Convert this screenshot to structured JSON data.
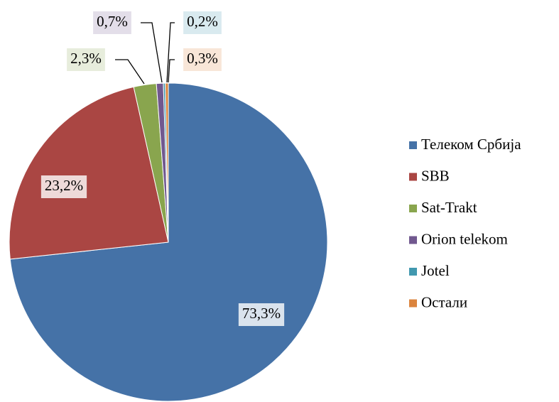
{
  "chart_data": {
    "type": "pie",
    "categories": [
      "Телеком Србија",
      "SBB",
      "Sat-Trakt",
      "Orion telekom",
      "Jotel",
      "Остали"
    ],
    "values": [
      73.3,
      23.2,
      2.3,
      0.7,
      0.2,
      0.3
    ],
    "value_labels": [
      "73,3%",
      "23,2%",
      "2,3%",
      "0,7%",
      "0,2%",
      "0,3%"
    ],
    "colors": [
      "#4572a7",
      "#aa4643",
      "#89a54e",
      "#71588f",
      "#4198af",
      "#db843d"
    ],
    "legend": "right"
  }
}
